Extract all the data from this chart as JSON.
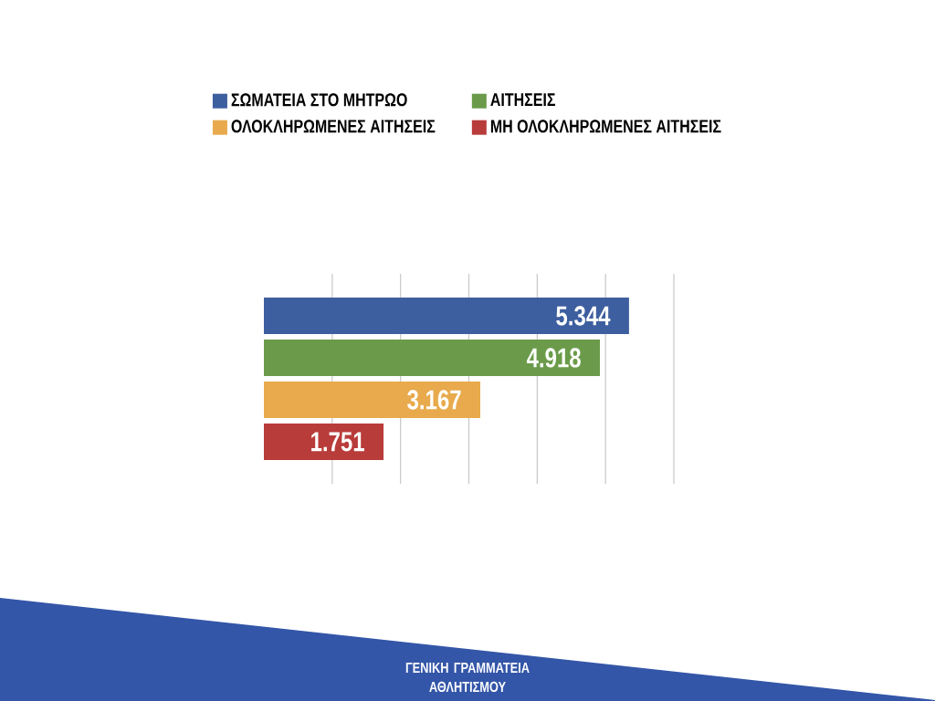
{
  "chart_data": {
    "type": "bar",
    "orientation": "horizontal",
    "categories": [
      null
    ],
    "series": [
      {
        "name": "ΣΩΜΑΤΕΙΑ ΣΤΟ ΜΗΤΡΩΟ",
        "color": "#3e5f9f",
        "values": [
          5344
        ],
        "value_labels": [
          "5.344"
        ]
      },
      {
        "name": "ΑΙΤΗΣΕΙΣ",
        "color": "#6b9b4a",
        "values": [
          4918
        ],
        "value_labels": [
          "4.918"
        ]
      },
      {
        "name": "ΟΛΟΚΛΗΡΩΜΕΝΕΣ ΑΙΤΗΣΕΙΣ",
        "color": "#e8aa4c",
        "values": [
          3167
        ],
        "value_labels": [
          "3.167"
        ]
      },
      {
        "name": "ΜΗ ΟΛΟΚΛΗΡΩΜΕΝΕΣ ΑΙΤΗΣΕΙΣ",
        "color": "#b83c3a",
        "values": [
          1751
        ],
        "value_labels": [
          "1.751"
        ]
      }
    ],
    "xlim": [
      0,
      6000
    ],
    "xticks": [
      {
        "value": 1000,
        "label": null
      },
      {
        "value": 2000,
        "label": null
      },
      {
        "value": 3000,
        "label": null
      },
      {
        "value": 4000,
        "label": null
      },
      {
        "value": 5000,
        "label": null
      },
      {
        "value": 6000,
        "label": null
      }
    ],
    "grid": "x",
    "legend": "top",
    "annotations": [
      "ΓΕΝΙΚΗ ΓΡΑΜΜΑΤΕΙΑ ΑΘΛΗΤΙΣΜΟΥ"
    ]
  }
}
